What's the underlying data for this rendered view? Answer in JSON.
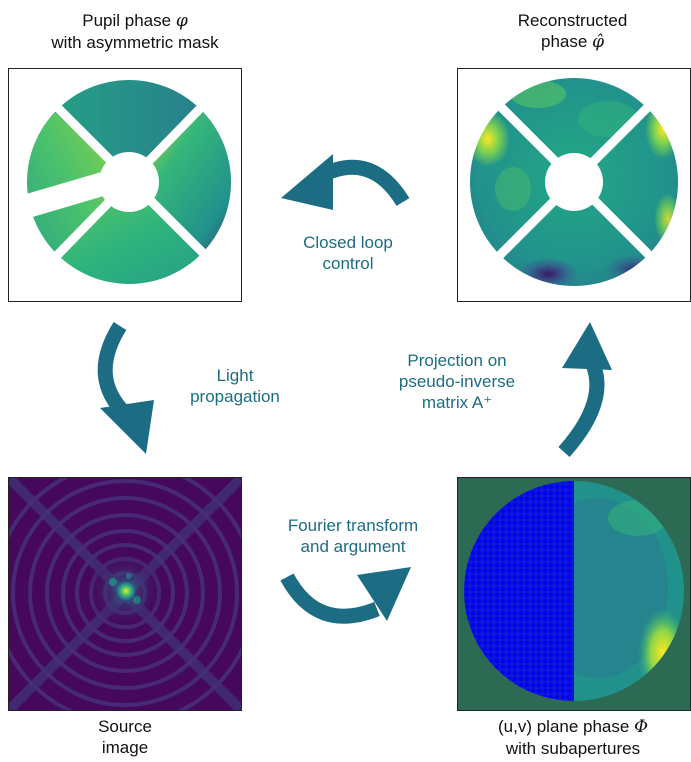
{
  "captions": {
    "pupil": {
      "line1_text": "Pupil phase ",
      "line1_symbol": "φ",
      "line2": "with asymmetric mask"
    },
    "reconstructed": {
      "line1": "Reconstructed",
      "line2_text": "phase ",
      "line2_symbol": "φ̂"
    },
    "source": {
      "line1": "Source",
      "line2": "image"
    },
    "uv": {
      "line1_text": "(u,v) plane phase ",
      "line1_symbol": "Φ",
      "line2": "with subapertures"
    }
  },
  "steps": {
    "closed_loop": {
      "line1": "Closed loop",
      "line2": "control"
    },
    "light": {
      "line1": "Light",
      "line2": "propagation"
    },
    "projection": {
      "line1": "Projection on",
      "line2": "pseudo-inverse",
      "line3": "matrix A⁺"
    },
    "fourier": {
      "line1": "Fourier transform",
      "line2": "and argument"
    }
  },
  "colors": {
    "arrow": "#1c6d84",
    "label": "#1c6d84",
    "viridis_dark": "#440154",
    "viridis_teal": "#2a9d8f",
    "viridis_yellow": "#fde725",
    "subaperture": "#0000ff"
  }
}
